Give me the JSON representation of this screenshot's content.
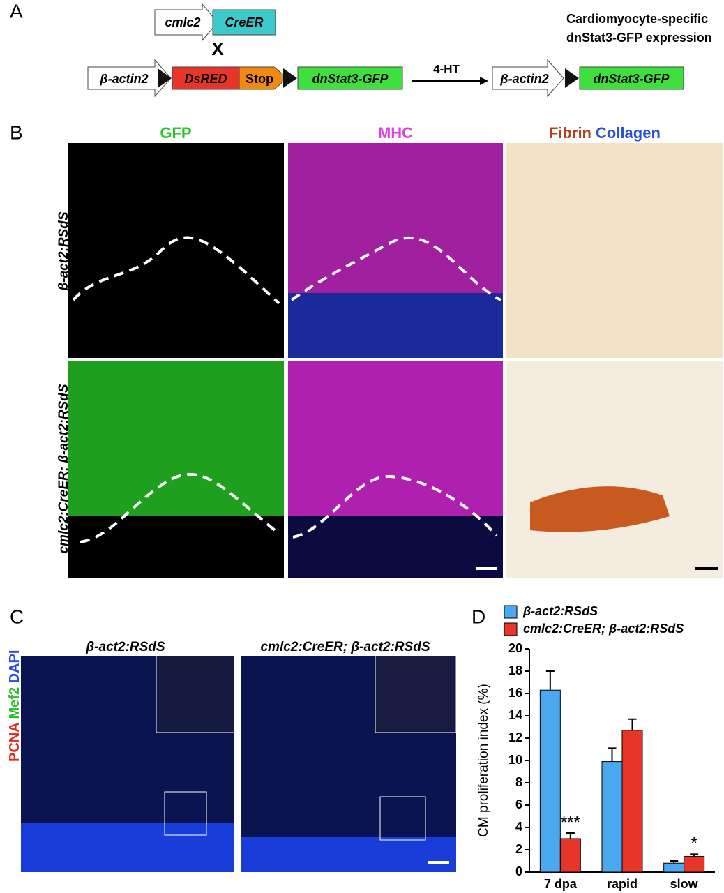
{
  "panel_a": {
    "label": "A",
    "cre_promoter": "cmlc2",
    "cre_gene": "CreER",
    "cross": "X",
    "promoter": "β-actin2",
    "dsred": "DsRED",
    "stop": "Stop",
    "dnstat3": "dnStat3-GFP",
    "arrow_label": "4-HT",
    "result_promoter": "β-actin2",
    "result_gene": "dnStat3-GFP",
    "result_title": [
      "Cardiomyocyte-specific",
      "dnStat3-GFP expression"
    ]
  },
  "panel_b": {
    "label": "B",
    "columns": [
      "GFP",
      "MHC",
      "Fibrin",
      "Collagen"
    ],
    "rows": [
      "β-act2:RSdS",
      "cmlc2:CreER; β-act2:RSdS"
    ]
  },
  "panel_c": {
    "label": "C",
    "titles": [
      "β-act2:RSdS",
      "cmlc2:CreER; β-act2:RSdS"
    ],
    "stain_labels": [
      "PCNA",
      "Mef2",
      "DAPI"
    ]
  },
  "chart_data": {
    "type": "bar",
    "label": "D",
    "ylabel": "CM proliferation index (%)",
    "categories": [
      "7 dpa",
      "rapid",
      "slow"
    ],
    "series": [
      {
        "name": "β-act2:RSdS",
        "color": "#4aa8f0",
        "values": [
          16.3,
          9.9,
          0.8
        ],
        "errors": [
          1.7,
          1.2,
          0.2
        ]
      },
      {
        "name": "cmlc2:CreER; β-act2:RSdS",
        "color": "#e8352a",
        "values": [
          3.0,
          12.7,
          1.4
        ],
        "errors": [
          0.5,
          1.0,
          0.2
        ]
      }
    ],
    "annotations": [
      "***",
      "*"
    ],
    "ylim": [
      0,
      20
    ],
    "yticks": [
      0,
      2,
      4,
      6,
      8,
      10,
      12,
      14,
      16,
      18,
      20
    ]
  }
}
